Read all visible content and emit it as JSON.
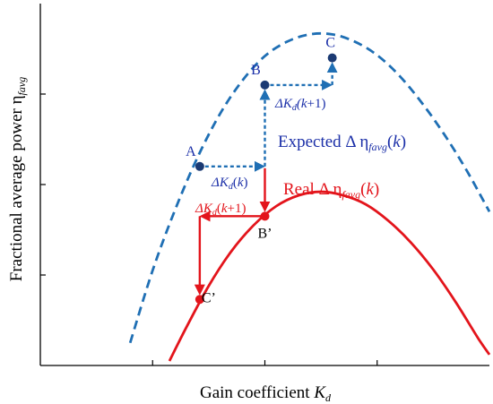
{
  "chart_data": {
    "type": "line",
    "xlabel": "Gain coefficient K_d",
    "ylabel": "Fractional average power η_favg",
    "xlim": [
      0,
      4
    ],
    "ylim": [
      0,
      4
    ],
    "grid": false,
    "x_ticks": [
      1,
      2,
      3
    ],
    "y_ticks": [
      1,
      2,
      3
    ],
    "colors": {
      "expected": "#1f6fb4",
      "real": "#e3141b",
      "point_expected": "#1b3a73",
      "label_blue": "#1b2fa8"
    },
    "series": [
      {
        "name": "Expected Δη_favg(k)",
        "style": "dashed",
        "x": [
          0.8,
          1.0,
          1.2,
          1.4,
          1.6,
          1.8,
          2.0,
          2.2,
          2.4,
          2.6,
          2.8,
          3.0,
          3.2,
          3.4,
          3.6,
          3.8,
          4.0
        ],
        "y": [
          0.25,
          1.05,
          1.72,
          2.3,
          2.78,
          3.15,
          3.42,
          3.58,
          3.66,
          3.66,
          3.58,
          3.43,
          3.2,
          2.9,
          2.55,
          2.15,
          1.7
        ]
      },
      {
        "name": "Real Δη_favg(k)",
        "style": "solid",
        "x": [
          1.15,
          1.3,
          1.5,
          1.7,
          1.9,
          2.1,
          2.3,
          2.5,
          2.7,
          2.9,
          3.1,
          3.3,
          3.5,
          3.7,
          3.9,
          4.0
        ],
        "y": [
          0.05,
          0.42,
          0.88,
          1.26,
          1.55,
          1.76,
          1.88,
          1.92,
          1.88,
          1.78,
          1.6,
          1.36,
          1.06,
          0.7,
          0.3,
          0.12
        ]
      }
    ],
    "points": [
      {
        "label": "A",
        "x": 1.42,
        "y": 2.2,
        "curve": "expected"
      },
      {
        "label": "B",
        "x": 2.0,
        "y": 3.1,
        "curve": "expected"
      },
      {
        "label": "C",
        "x": 2.6,
        "y": 3.4,
        "curve": "expected"
      },
      {
        "label": "B’",
        "x": 2.0,
        "y": 1.65,
        "curve": "real"
      },
      {
        "label": "C’",
        "x": 1.42,
        "y": 0.73,
        "curve": "real"
      }
    ],
    "annotations": {
      "dk_k": "ΔK_d(k)",
      "dk_k1_upper": "ΔK_d(k+1)",
      "dk_k1_lower": "ΔK_d(k+1)",
      "expected_label": "Expected Δη_favg(k)",
      "real_label": "Real Δη_favg(k)"
    }
  }
}
